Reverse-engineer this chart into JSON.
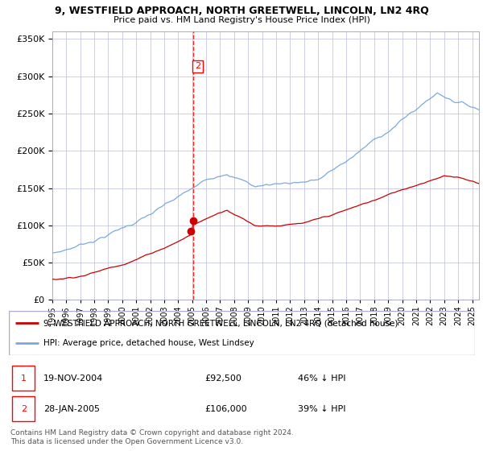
{
  "title": "9, WESTFIELD APPROACH, NORTH GREETWELL, LINCOLN, LN2 4RQ",
  "subtitle": "Price paid vs. HM Land Registry's House Price Index (HPI)",
  "background_color": "#ffffff",
  "plot_bg_color": "#ffffff",
  "grid_color": "#bbbbdd",
  "sale1_date_num": 2004.89,
  "sale1_price": 92500,
  "sale2_date_num": 2005.08,
  "sale2_price": 106000,
  "vline_date": 2005.08,
  "legend_line1": "9, WESTFIELD APPROACH, NORTH GREETWELL, LINCOLN, LN2 4RQ (detached house)",
  "legend_line2": "HPI: Average price, detached house, West Lindsey",
  "footer": "Contains HM Land Registry data © Crown copyright and database right 2024.\nThis data is licensed under the Open Government Licence v3.0.",
  "hpi_color": "#7aaadd",
  "price_color": "#cc0000",
  "marker_color": "#cc0000",
  "ylim_max": 360000,
  "ylim_min": 0,
  "xlim_min": 1995.0,
  "xlim_max": 2025.5
}
